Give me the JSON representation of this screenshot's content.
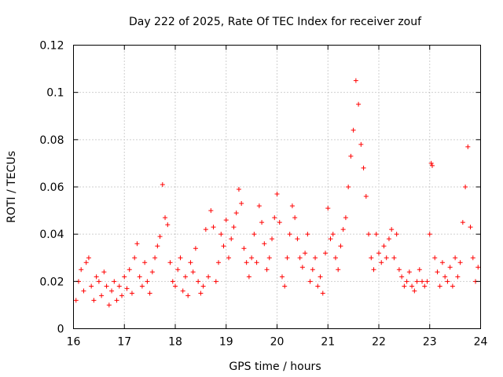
{
  "chart_data": {
    "type": "scatter",
    "title": "Day 222 of 2025, Rate Of TEC Index for receiver zouf",
    "xlabel": "GPS time / hours",
    "ylabel": "ROTI / TECUs",
    "xlim": [
      16,
      24
    ],
    "ylim": [
      0,
      0.12
    ],
    "x_ticks": [
      "16",
      "17",
      "18",
      "19",
      "20",
      "21",
      "22",
      "23",
      "24"
    ],
    "y_ticks": [
      "0",
      "0.02",
      "0.04",
      "0.06",
      "0.08",
      "0.1",
      "0.12"
    ],
    "grid": true,
    "marker": "plus",
    "color": "#ff0000",
    "series": [
      {
        "name": "ROTI",
        "points": [
          [
            16.05,
            0.012
          ],
          [
            16.1,
            0.02
          ],
          [
            16.15,
            0.025
          ],
          [
            16.2,
            0.016
          ],
          [
            16.25,
            0.028
          ],
          [
            16.3,
            0.03
          ],
          [
            16.35,
            0.018
          ],
          [
            16.4,
            0.012
          ],
          [
            16.45,
            0.022
          ],
          [
            16.5,
            0.02
          ],
          [
            16.55,
            0.014
          ],
          [
            16.6,
            0.024
          ],
          [
            16.65,
            0.018
          ],
          [
            16.7,
            0.01
          ],
          [
            16.75,
            0.016
          ],
          [
            16.8,
            0.02
          ],
          [
            16.85,
            0.012
          ],
          [
            16.9,
            0.018
          ],
          [
            16.95,
            0.014
          ],
          [
            17.0,
            0.022
          ],
          [
            17.05,
            0.017
          ],
          [
            17.1,
            0.025
          ],
          [
            17.15,
            0.015
          ],
          [
            17.2,
            0.03
          ],
          [
            17.25,
            0.036
          ],
          [
            17.3,
            0.022
          ],
          [
            17.35,
            0.018
          ],
          [
            17.4,
            0.028
          ],
          [
            17.45,
            0.02
          ],
          [
            17.5,
            0.015
          ],
          [
            17.55,
            0.024
          ],
          [
            17.6,
            0.03
          ],
          [
            17.65,
            0.035
          ],
          [
            17.7,
            0.039
          ],
          [
            17.75,
            0.061
          ],
          [
            17.8,
            0.047
          ],
          [
            17.85,
            0.044
          ],
          [
            17.9,
            0.028
          ],
          [
            17.95,
            0.02
          ],
          [
            18.0,
            0.018
          ],
          [
            18.05,
            0.025
          ],
          [
            18.1,
            0.03
          ],
          [
            18.15,
            0.016
          ],
          [
            18.2,
            0.022
          ],
          [
            18.25,
            0.014
          ],
          [
            18.3,
            0.028
          ],
          [
            18.35,
            0.024
          ],
          [
            18.4,
            0.034
          ],
          [
            18.45,
            0.02
          ],
          [
            18.5,
            0.015
          ],
          [
            18.55,
            0.018
          ],
          [
            18.6,
            0.042
          ],
          [
            18.65,
            0.022
          ],
          [
            18.7,
            0.05
          ],
          [
            18.75,
            0.043
          ],
          [
            18.8,
            0.02
          ],
          [
            18.85,
            0.028
          ],
          [
            18.9,
            0.04
          ],
          [
            18.95,
            0.035
          ],
          [
            19.0,
            0.046
          ],
          [
            19.05,
            0.03
          ],
          [
            19.1,
            0.038
          ],
          [
            19.15,
            0.043
          ],
          [
            19.2,
            0.049
          ],
          [
            19.25,
            0.059
          ],
          [
            19.3,
            0.053
          ],
          [
            19.35,
            0.034
          ],
          [
            19.4,
            0.028
          ],
          [
            19.45,
            0.022
          ],
          [
            19.5,
            0.03
          ],
          [
            19.55,
            0.04
          ],
          [
            19.6,
            0.028
          ],
          [
            19.65,
            0.052
          ],
          [
            19.7,
            0.045
          ],
          [
            19.75,
            0.036
          ],
          [
            19.8,
            0.025
          ],
          [
            19.85,
            0.03
          ],
          [
            19.9,
            0.038
          ],
          [
            19.95,
            0.047
          ],
          [
            20.0,
            0.057
          ],
          [
            20.05,
            0.045
          ],
          [
            20.1,
            0.022
          ],
          [
            20.15,
            0.018
          ],
          [
            20.2,
            0.03
          ],
          [
            20.25,
            0.04
          ],
          [
            20.3,
            0.052
          ],
          [
            20.35,
            0.047
          ],
          [
            20.4,
            0.038
          ],
          [
            20.45,
            0.03
          ],
          [
            20.5,
            0.026
          ],
          [
            20.55,
            0.032
          ],
          [
            20.6,
            0.04
          ],
          [
            20.65,
            0.02
          ],
          [
            20.7,
            0.025
          ],
          [
            20.75,
            0.03
          ],
          [
            20.8,
            0.018
          ],
          [
            20.85,
            0.022
          ],
          [
            20.9,
            0.015
          ],
          [
            20.95,
            0.032
          ],
          [
            21.0,
            0.051
          ],
          [
            21.05,
            0.038
          ],
          [
            21.1,
            0.04
          ],
          [
            21.15,
            0.03
          ],
          [
            21.2,
            0.025
          ],
          [
            21.25,
            0.035
          ],
          [
            21.3,
            0.042
          ],
          [
            21.35,
            0.047
          ],
          [
            21.4,
            0.06
          ],
          [
            21.45,
            0.073
          ],
          [
            21.5,
            0.084
          ],
          [
            21.55,
            0.105
          ],
          [
            21.6,
            0.095
          ],
          [
            21.65,
            0.078
          ],
          [
            21.7,
            0.068
          ],
          [
            21.75,
            0.056
          ],
          [
            21.8,
            0.04
          ],
          [
            21.85,
            0.03
          ],
          [
            21.9,
            0.025
          ],
          [
            21.95,
            0.04
          ],
          [
            22.0,
            0.032
          ],
          [
            22.05,
            0.028
          ],
          [
            22.1,
            0.035
          ],
          [
            22.15,
            0.03
          ],
          [
            22.2,
            0.038
          ],
          [
            22.25,
            0.042
          ],
          [
            22.3,
            0.03
          ],
          [
            22.35,
            0.04
          ],
          [
            22.4,
            0.025
          ],
          [
            22.45,
            0.022
          ],
          [
            22.5,
            0.018
          ],
          [
            22.55,
            0.02
          ],
          [
            22.6,
            0.024
          ],
          [
            22.65,
            0.018
          ],
          [
            22.7,
            0.016
          ],
          [
            22.75,
            0.02
          ],
          [
            22.8,
            0.025
          ],
          [
            22.85,
            0.02
          ],
          [
            22.9,
            0.018
          ],
          [
            22.95,
            0.02
          ],
          [
            23.0,
            0.04
          ],
          [
            23.03,
            0.07
          ],
          [
            23.05,
            0.069
          ],
          [
            23.1,
            0.03
          ],
          [
            23.15,
            0.024
          ],
          [
            23.2,
            0.018
          ],
          [
            23.25,
            0.028
          ],
          [
            23.3,
            0.022
          ],
          [
            23.35,
            0.02
          ],
          [
            23.4,
            0.026
          ],
          [
            23.45,
            0.018
          ],
          [
            23.5,
            0.03
          ],
          [
            23.55,
            0.022
          ],
          [
            23.6,
            0.028
          ],
          [
            23.65,
            0.045
          ],
          [
            23.7,
            0.06
          ],
          [
            23.75,
            0.077
          ],
          [
            23.8,
            0.043
          ],
          [
            23.85,
            0.03
          ],
          [
            23.9,
            0.02
          ],
          [
            23.95,
            0.026
          ]
        ]
      }
    ]
  }
}
